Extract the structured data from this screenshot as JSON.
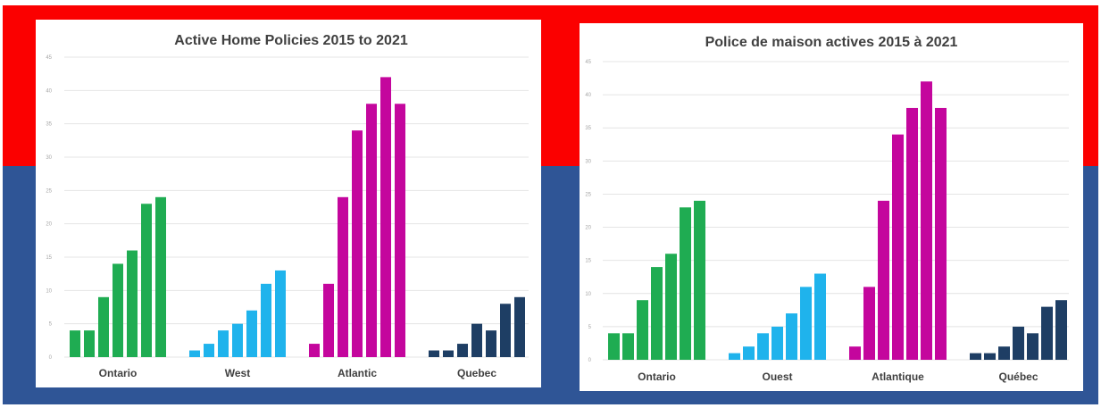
{
  "colors": {
    "background_top": "#fb0000",
    "background_bottom": "#2f5596",
    "ontario": "#1fac52",
    "west": "#1fb3ec",
    "atlantic": "#c4069d",
    "quebec": "#1e3e64"
  },
  "chart_data": [
    {
      "type": "bar",
      "title": "Active Home Policies 2015 to 2021",
      "ylim": [
        0,
        45
      ],
      "yticks": [
        0,
        5,
        10,
        15,
        20,
        25,
        30,
        35,
        40,
        45
      ],
      "grid": true,
      "groups": [
        {
          "name": "Ontario",
          "color": "#1fac52",
          "values": [
            4,
            4,
            9,
            14,
            16,
            23,
            24
          ]
        },
        {
          "name": "West",
          "color": "#1fb3ec",
          "values": [
            1,
            2,
            4,
            5,
            7,
            11,
            13
          ]
        },
        {
          "name": "Atlantic",
          "color": "#c4069d",
          "values": [
            2,
            11,
            24,
            34,
            38,
            42,
            38
          ]
        },
        {
          "name": "Quebec",
          "color": "#1e3e64",
          "values": [
            1,
            1,
            2,
            5,
            4,
            8,
            9
          ]
        }
      ]
    },
    {
      "type": "bar",
      "title": "Police de maison actives 2015 à 2021",
      "ylim": [
        0,
        45
      ],
      "yticks": [
        0,
        5,
        10,
        15,
        20,
        25,
        30,
        35,
        40,
        45
      ],
      "grid": true,
      "groups": [
        {
          "name": "Ontario",
          "color": "#1fac52",
          "values": [
            4,
            4,
            9,
            14,
            16,
            23,
            24
          ]
        },
        {
          "name": "Ouest",
          "color": "#1fb3ec",
          "values": [
            1,
            2,
            4,
            5,
            7,
            11,
            13
          ]
        },
        {
          "name": "Atlantique",
          "color": "#c4069d",
          "values": [
            2,
            11,
            24,
            34,
            38,
            42,
            38
          ]
        },
        {
          "name": "Québec",
          "color": "#1e3e64",
          "values": [
            1,
            1,
            2,
            5,
            4,
            8,
            9
          ]
        }
      ]
    }
  ]
}
